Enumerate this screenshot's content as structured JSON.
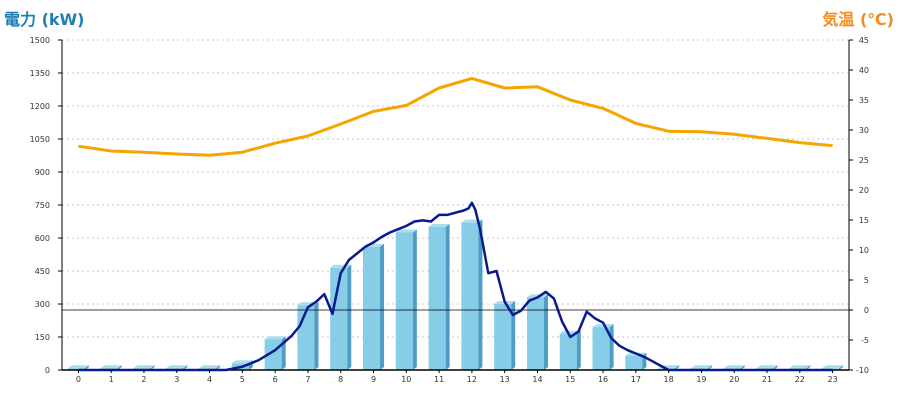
{
  "colors": {
    "power_axis_title": "#1f7fb5",
    "temp_axis_title": "#f28c1e",
    "bar_front": "#87cde8",
    "bar_side": "#4d9dc4",
    "bar_top": "#a9ddef",
    "power_line": "#0a1a8c",
    "temp_line": "#f5a400",
    "grid": "#c8c8c8",
    "axis": "#000000"
  },
  "chart_data": {
    "type": "bar+line",
    "title_left": "電力 (kW)",
    "title_right": "気温 (℃)",
    "categories": [
      "0",
      "1",
      "2",
      "3",
      "4",
      "5",
      "6",
      "7",
      "8",
      "9",
      "10",
      "11",
      "12",
      "13",
      "14",
      "15",
      "16",
      "17",
      "18",
      "19",
      "20",
      "21",
      "22",
      "23"
    ],
    "y_left": {
      "min": 0,
      "max": 1500,
      "step": 150,
      "ticks": [
        "0",
        "150",
        "300",
        "450",
        "600",
        "750",
        "900",
        "1050",
        "1200",
        "1350",
        "1500"
      ]
    },
    "y_right": {
      "min": -10,
      "max": 45,
      "step": 5,
      "ticks": [
        "-10",
        "-5",
        "0",
        "5",
        "10",
        "15",
        "20",
        "25",
        "30",
        "35",
        "40",
        "45"
      ]
    },
    "grid": "horizontal dashed",
    "series": [
      {
        "type": "bar",
        "axis": "left",
        "values": [
          8,
          8,
          8,
          8,
          8,
          30,
          140,
          295,
          465,
          560,
          625,
          650,
          670,
          300,
          330,
          165,
          195,
          65,
          8,
          8,
          8,
          8,
          8,
          8
        ]
      },
      {
        "type": "line",
        "axis": "left",
        "x": [
          0,
          1,
          2,
          3,
          4,
          4.5,
          5,
          5.5,
          6,
          6.5,
          6.75,
          7,
          7.25,
          7.5,
          7.75,
          8,
          8.25,
          8.5,
          8.75,
          9,
          9.25,
          9.5,
          9.75,
          10,
          10.25,
          10.5,
          10.75,
          11,
          11.25,
          11.5,
          11.75,
          11.9,
          12,
          12.1,
          12.25,
          12.5,
          12.75,
          13,
          13.25,
          13.5,
          13.75,
          14,
          14.25,
          14.5,
          14.75,
          15,
          15.25,
          15.5,
          15.75,
          16,
          16.25,
          16.5,
          16.75,
          17,
          17.25,
          17.5,
          17.75,
          18,
          19,
          20,
          21,
          22,
          23
        ],
        "values": [
          0,
          0,
          0,
          0,
          0,
          0,
          15,
          45,
          90,
          155,
          200,
          285,
          310,
          345,
          255,
          440,
          500,
          530,
          560,
          580,
          605,
          625,
          640,
          655,
          675,
          680,
          675,
          705,
          705,
          715,
          725,
          735,
          760,
          730,
          640,
          440,
          450,
          310,
          250,
          270,
          315,
          330,
          355,
          325,
          220,
          150,
          175,
          265,
          235,
          215,
          145,
          110,
          90,
          75,
          60,
          40,
          20,
          0,
          0,
          0,
          0,
          0,
          0
        ]
      },
      {
        "type": "line",
        "axis": "right",
        "x": [
          0,
          1,
          2,
          3,
          4,
          5,
          6,
          7,
          8,
          9,
          10,
          11,
          12,
          13,
          14,
          15,
          16,
          17,
          18,
          19,
          20,
          21,
          22,
          23
        ],
        "values": [
          27.3,
          26.5,
          26.3,
          26.0,
          25.8,
          26.3,
          27.8,
          29.0,
          31.0,
          33.1,
          34.1,
          37.0,
          38.6,
          37.0,
          37.2,
          35.0,
          33.6,
          31.1,
          29.8,
          29.7,
          29.3,
          28.6,
          27.9,
          27.4
        ]
      }
    ]
  }
}
